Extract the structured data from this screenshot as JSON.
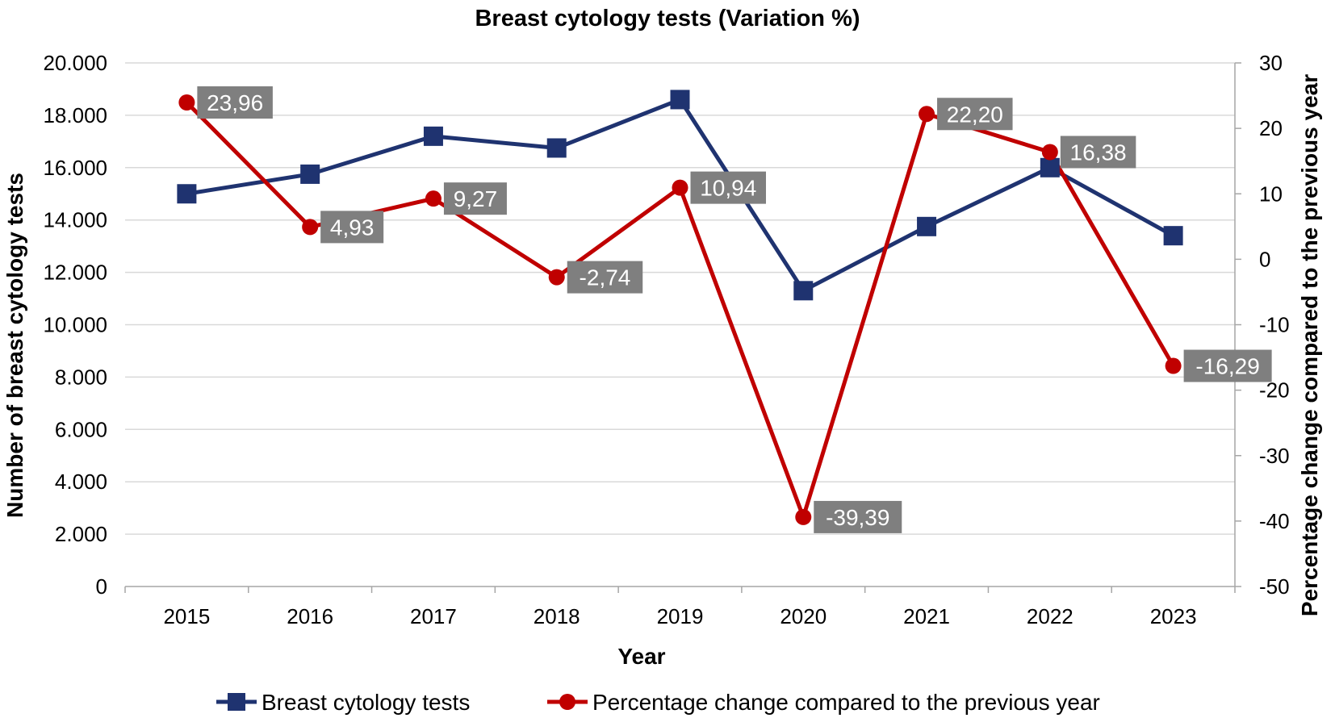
{
  "chart_data": {
    "type": "line",
    "title": "Breast cytology tests (Variation %)",
    "xlabel": "Year",
    "ylabel": "Number of breast cytology tests",
    "y2label": "Percentage change compared to the previous year",
    "categories": [
      "2015",
      "2016",
      "2017",
      "2018",
      "2019",
      "2020",
      "2021",
      "2022",
      "2023"
    ],
    "ylim": [
      0,
      20000
    ],
    "y_ticks": [
      0,
      2000,
      4000,
      6000,
      8000,
      10000,
      12000,
      14000,
      16000,
      18000,
      20000
    ],
    "y_tick_labels": [
      "0",
      "2.000",
      "4.000",
      "6.000",
      "8.000",
      "10.000",
      "12.000",
      "14.000",
      "16.000",
      "18.000",
      "20.000"
    ],
    "y2lim": [
      -50,
      30
    ],
    "y2_ticks": [
      -50,
      -40,
      -30,
      -20,
      -10,
      0,
      10,
      20,
      30
    ],
    "y2_tick_labels": [
      "-50",
      "-40",
      "-30",
      "-20",
      "-10",
      "0",
      "10",
      "20",
      "30"
    ],
    "grid": true,
    "legend_position": "bottom",
    "series": [
      {
        "name": "Breast cytology tests",
        "axis": "left",
        "color": "#1f3370",
        "marker": "square",
        "values": [
          15000,
          15750,
          17200,
          16750,
          18600,
          11300,
          13750,
          16000,
          13400
        ]
      },
      {
        "name": "Percentage change compared to the previous year",
        "axis": "right",
        "color": "#c00000",
        "marker": "circle",
        "values": [
          23.96,
          4.93,
          9.27,
          -2.74,
          10.94,
          -39.39,
          22.2,
          16.38,
          -16.29
        ],
        "data_labels": [
          "23,96",
          "4,93",
          "9,27",
          "-2,74",
          "10,94",
          "-39,39",
          "22,20",
          "16,38",
          "-16,29"
        ],
        "data_label_bg": "#7f7f7f"
      }
    ]
  }
}
